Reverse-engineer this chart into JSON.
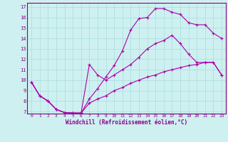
{
  "xlabel": "Windchill (Refroidissement éolien,°C)",
  "bg_color": "#cef0f0",
  "line_color": "#aa00aa",
  "xlim": [
    -0.5,
    23.5
  ],
  "ylim": [
    6.8,
    17.4
  ],
  "xticks": [
    0,
    1,
    2,
    3,
    4,
    5,
    6,
    7,
    8,
    9,
    10,
    11,
    12,
    13,
    14,
    15,
    16,
    17,
    18,
    19,
    20,
    21,
    22,
    23
  ],
  "yticks": [
    7,
    8,
    9,
    10,
    11,
    12,
    13,
    14,
    15,
    16,
    17
  ],
  "curve_upper_x": [
    0,
    1,
    2,
    3,
    4,
    5,
    6,
    7,
    8,
    9,
    10,
    11,
    12,
    13,
    14,
    15,
    16,
    17,
    18,
    19,
    20,
    21,
    22,
    23
  ],
  "curve_upper_y": [
    9.8,
    8.5,
    8.0,
    7.2,
    6.9,
    6.85,
    6.85,
    8.2,
    9.2,
    10.3,
    11.4,
    12.8,
    14.8,
    15.9,
    16.0,
    16.85,
    16.85,
    16.5,
    16.3,
    15.5,
    15.3,
    15.3,
    14.5,
    14.0
  ],
  "curve_mid_x": [
    0,
    1,
    2,
    3,
    4,
    5,
    6,
    7,
    8,
    9,
    10,
    11,
    12,
    13,
    14,
    15,
    16,
    17,
    18,
    19,
    20,
    21,
    22,
    23
  ],
  "curve_mid_y": [
    9.8,
    8.5,
    8.0,
    7.2,
    6.9,
    6.85,
    6.85,
    11.5,
    10.5,
    10.0,
    10.5,
    11.0,
    11.5,
    12.2,
    13.0,
    13.5,
    13.8,
    14.3,
    13.5,
    12.5,
    11.7,
    11.7,
    11.7,
    10.5
  ],
  "curve_lower_x": [
    0,
    1,
    2,
    3,
    4,
    5,
    6,
    7,
    8,
    9,
    10,
    11,
    12,
    13,
    14,
    15,
    16,
    17,
    18,
    19,
    20,
    21,
    22,
    23
  ],
  "curve_lower_y": [
    9.8,
    8.5,
    8.0,
    7.2,
    6.9,
    6.85,
    6.85,
    7.8,
    8.2,
    8.5,
    9.0,
    9.3,
    9.7,
    10.0,
    10.3,
    10.5,
    10.8,
    11.0,
    11.2,
    11.4,
    11.5,
    11.7,
    11.7,
    10.5
  ]
}
